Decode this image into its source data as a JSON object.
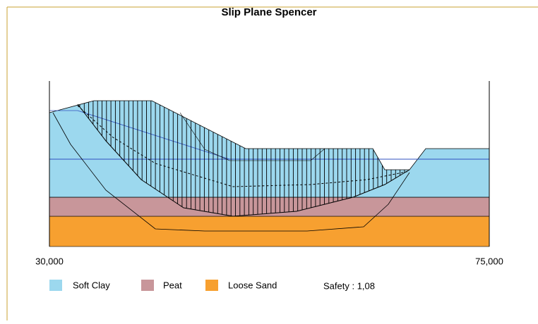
{
  "header": {
    "title": "Slip Plane Spencer"
  },
  "axis": {
    "labels": [
      "30,000",
      "75,000"
    ]
  },
  "legend": [
    "Soft Clay",
    "Peat",
    "Loose Sand"
  ],
  "safety": "Safety : 1,08"
}
